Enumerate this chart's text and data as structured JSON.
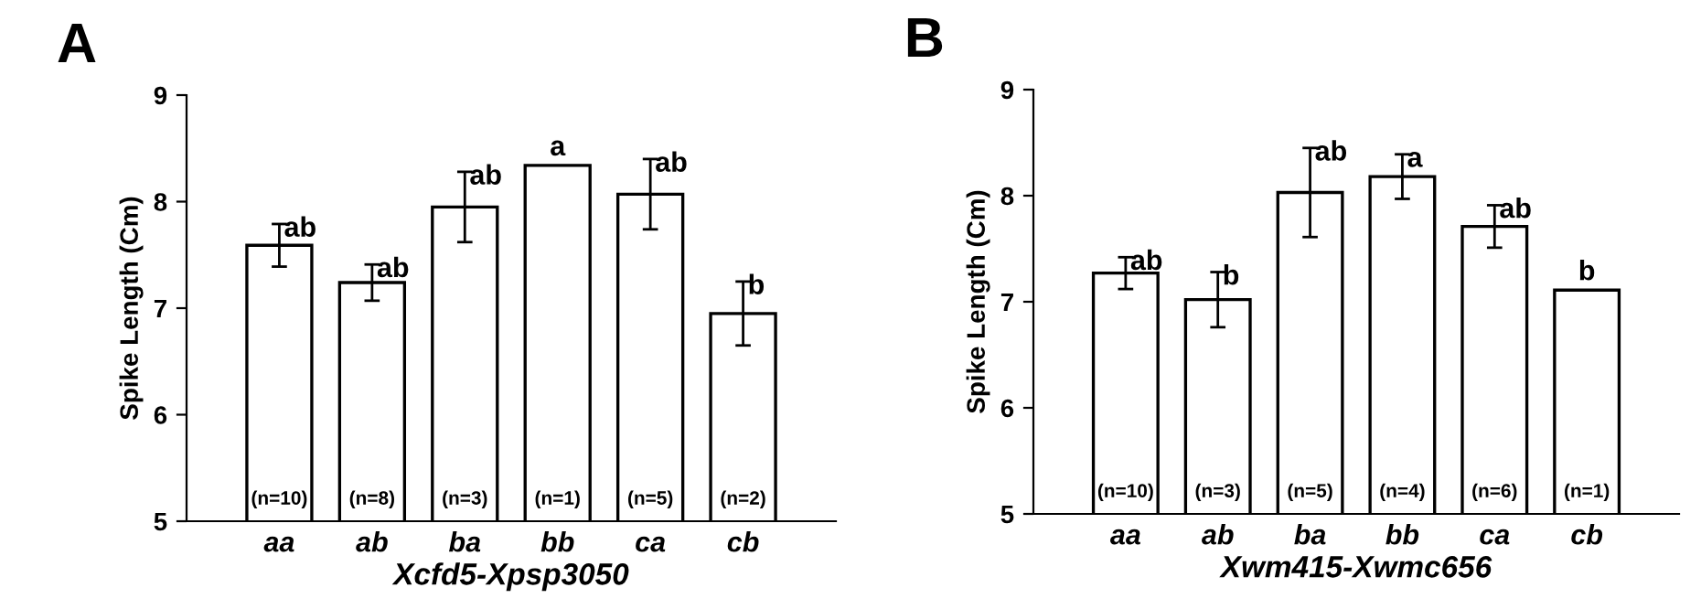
{
  "chart_data": [
    {
      "type": "bar",
      "title": "A",
      "xlabel": "Xcfd5-Xpsp3050",
      "ylabel": "Spike Length (Cm)",
      "categories": [
        "aa",
        "ab",
        "ba",
        "bb",
        "ca",
        "cb"
      ],
      "values": [
        7.59,
        7.24,
        7.95,
        8.34,
        8.07,
        6.95
      ],
      "errors": [
        0.2,
        0.17,
        0.33,
        null,
        0.33,
        0.3
      ],
      "color": "#ffffff",
      "ylim": [
        5,
        9
      ],
      "yticks": [
        5,
        6,
        7,
        8,
        9
      ],
      "grid": false,
      "annotations": [
        {
          "text": "ab",
          "x": "aa",
          "y": 7.79
        },
        {
          "text": "ab",
          "x": "ab",
          "y": 7.41
        },
        {
          "text": "ab",
          "x": "ba",
          "y": 8.28
        },
        {
          "text": "a",
          "x": "bb",
          "y": 8.34
        },
        {
          "text": "ab",
          "x": "ca",
          "y": 8.4
        },
        {
          "text": "b",
          "x": "cb",
          "y": 7.25
        },
        "(n=10)",
        "(n=8)",
        "(n=3)",
        "(n=1)",
        "(n=5)",
        "(n=2)"
      ]
    },
    {
      "type": "bar",
      "title": "B",
      "xlabel": "Xwm415-Xwmc656",
      "ylabel": "Spike Length (Cm)",
      "categories": [
        "aa",
        "ab",
        "ba",
        "bb",
        "ca",
        "cb"
      ],
      "values": [
        7.27,
        7.02,
        8.03,
        8.18,
        7.71,
        7.11
      ],
      "errors": [
        0.15,
        0.26,
        0.42,
        0.21,
        0.2,
        null
      ],
      "color": "#ffffff",
      "ylim": [
        5,
        9
      ],
      "yticks": [
        5,
        6,
        7,
        8,
        9
      ],
      "grid": false,
      "annotations": [
        {
          "text": "ab",
          "x": "aa",
          "y": 7.42
        },
        {
          "text": "b",
          "x": "ab",
          "y": 7.28
        },
        {
          "text": "ab",
          "x": "ba",
          "y": 8.45
        },
        {
          "text": "a",
          "x": "bb",
          "y": 8.39
        },
        {
          "text": "ab",
          "x": "ca",
          "y": 7.91
        },
        {
          "text": "b",
          "x": "cb",
          "y": 7.11
        },
        "(n=10)",
        "(n=3)",
        "(n=5)",
        "(n=4)",
        "(n=6)",
        "(n=1)"
      ]
    }
  ]
}
